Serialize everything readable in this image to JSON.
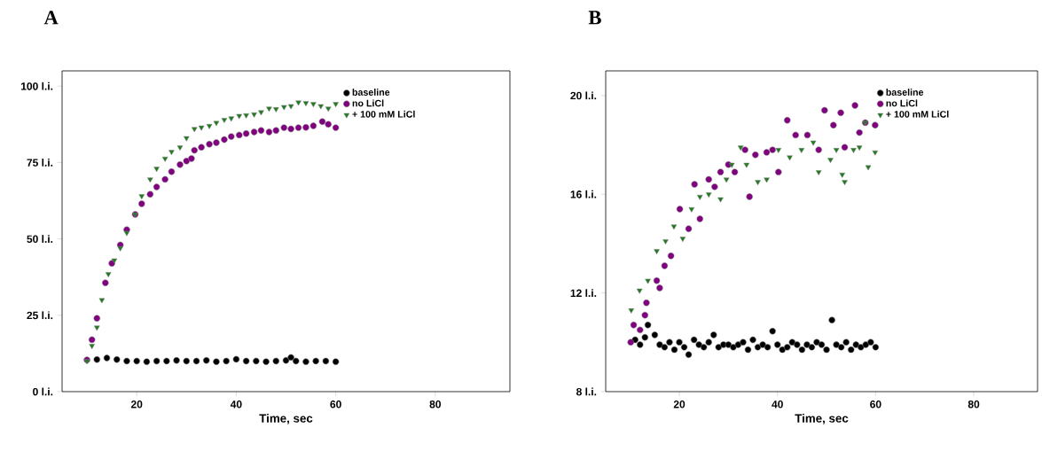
{
  "chart_data": [
    {
      "type": "scatter",
      "title": "A",
      "xlabel": "Time, sec",
      "xlim": [
        5,
        95
      ],
      "xticks": [
        20,
        40,
        60,
        80
      ],
      "ylim": [
        0,
        105
      ],
      "yticks": [
        {
          "value": 0,
          "label": "0 l.i."
        },
        {
          "value": 25,
          "label": "25 l.i."
        },
        {
          "value": 50,
          "label": "50 l.i."
        },
        {
          "value": 75,
          "label": "75 l.i."
        },
        {
          "value": 100,
          "label": "100 l.i."
        }
      ],
      "legend": "top right",
      "grid": false,
      "series": [
        {
          "name": "baseline",
          "color": "#000000",
          "marker": "circle",
          "x": [
            12,
            14,
            16,
            18,
            20,
            22,
            24,
            26,
            28,
            30,
            32,
            34,
            36,
            38,
            40,
            42,
            44,
            46,
            48,
            50,
            51,
            52,
            54,
            56,
            58,
            60
          ],
          "values": [
            10.5,
            11,
            10.5,
            10,
            10,
            9.8,
            10,
            10,
            10.2,
            10,
            10,
            10.2,
            9.8,
            10,
            10.6,
            10,
            10,
            9.8,
            10,
            10.2,
            11.2,
            10,
            9.8,
            10,
            10,
            9.8
          ]
        },
        {
          "name": "no LiCl",
          "color": "#800080",
          "marker": "circle",
          "x": [
            10,
            11,
            12,
            13.7,
            15,
            16.7,
            18,
            19.7,
            21,
            22.7,
            24,
            25.7,
            27,
            28.7,
            30,
            31,
            31.6,
            33,
            34.6,
            36,
            37.6,
            39,
            40.6,
            42,
            43.6,
            45,
            46.6,
            48,
            49.6,
            51,
            52.5,
            54,
            55.5,
            57.3,
            58.5,
            60
          ],
          "values": [
            10.4,
            17,
            24,
            35.6,
            42,
            48,
            53,
            58,
            61.5,
            64.6,
            67,
            69.5,
            72,
            74.3,
            75.5,
            76.3,
            79,
            80,
            81,
            81.5,
            82.5,
            83.5,
            84,
            84.5,
            85,
            85.5,
            85,
            85.5,
            86.4,
            86,
            86.4,
            86.5,
            87,
            88.4,
            87.5,
            86.4
          ]
        },
        {
          "name": "+ 100 mM LiCl",
          "color": "#1e7b1e",
          "marker": "triangle",
          "x": [
            10,
            11,
            12,
            13,
            14.3,
            15.5,
            16.7,
            18,
            19.7,
            21,
            22.7,
            24,
            25.7,
            27,
            28.7,
            30,
            31.6,
            33,
            34.6,
            36,
            37.6,
            39,
            40.6,
            42,
            43.6,
            45,
            46.6,
            48,
            49.6,
            51,
            52.5,
            54,
            55.5,
            57,
            58.5,
            60
          ],
          "values": [
            10,
            15,
            21,
            30,
            38.5,
            43,
            47,
            52,
            58,
            64,
            69.5,
            73,
            76.3,
            78.5,
            80,
            83,
            86,
            86.5,
            87,
            88,
            89,
            89.5,
            90.3,
            90.5,
            90.8,
            91.5,
            92.7,
            92.5,
            93.2,
            93.5,
            94.7,
            94.5,
            94.2,
            93.5,
            92.7,
            94.2
          ]
        }
      ]
    },
    {
      "type": "scatter",
      "title": "B",
      "xlabel": "Time, sec",
      "xlim": [
        5,
        93
      ],
      "xticks": [
        20,
        40,
        60,
        80
      ],
      "ylim": [
        8,
        21
      ],
      "yticks": [
        {
          "value": 8,
          "label": "8 l.i."
        },
        {
          "value": 12,
          "label": "12 l.i."
        },
        {
          "value": 16,
          "label": "16 l.i."
        },
        {
          "value": 20,
          "label": "20 l.i."
        }
      ],
      "legend": "top right",
      "grid": false,
      "series": [
        {
          "name": "baseline",
          "color": "#000000",
          "marker": "circle",
          "x": [
            11,
            12,
            13,
            13.6,
            15,
            16,
            17,
            18,
            19,
            20,
            21,
            21.9,
            23,
            24,
            25,
            26,
            27,
            28,
            29,
            30,
            31,
            32,
            33,
            34,
            35,
            36,
            37,
            38,
            39,
            40,
            41,
            42,
            43,
            44,
            45,
            46,
            47,
            48,
            49,
            50,
            51.1,
            52,
            53,
            54,
            55,
            56,
            57,
            58,
            59,
            60
          ],
          "values": [
            10.1,
            9.9,
            10.2,
            10.7,
            10.3,
            9.9,
            9.8,
            10,
            9.7,
            10,
            9.8,
            9.5,
            10.1,
            9.9,
            9.8,
            10,
            10.3,
            9.8,
            9.9,
            9.9,
            9.8,
            9.9,
            10,
            9.7,
            10.1,
            9.8,
            9.9,
            9.8,
            10.45,
            9.9,
            9.7,
            9.8,
            10,
            9.9,
            9.7,
            9.9,
            9.8,
            10,
            9.9,
            9.7,
            10.9,
            9.9,
            9.8,
            10,
            9.7,
            9.9,
            9.8,
            9.9,
            10,
            9.8
          ]
        },
        {
          "name": "no LiCl",
          "color": "#800080",
          "marker": "circle",
          "x": [
            10.1,
            10.7,
            12,
            13,
            13.3,
            15.4,
            16,
            17,
            18.3,
            20.1,
            21.9,
            23.1,
            24.2,
            26,
            27.2,
            28.4,
            30,
            31.3,
            33.4,
            34.3,
            35.5,
            37.8,
            39,
            40.2,
            42,
            43.7,
            46.1,
            48.4,
            49.6,
            51.4,
            52.9,
            53.7,
            55.8,
            56.7,
            57.9,
            59.9
          ],
          "values": [
            10,
            10.7,
            10.5,
            11.1,
            11.6,
            12.5,
            12.2,
            13.1,
            13.5,
            15.4,
            14.6,
            16.4,
            15,
            16.6,
            16.3,
            16.9,
            17.2,
            16.9,
            17.8,
            15.9,
            17.6,
            17.7,
            17.8,
            16.9,
            19,
            18.4,
            18.4,
            17.8,
            19.4,
            18.8,
            19.3,
            17.9,
            19.6,
            18.5,
            18.9,
            18.8
          ]
        },
        {
          "name": "+ 100 mM LiCl",
          "color": "#1e7b1e",
          "marker": "triangle",
          "x": [
            10.2,
            11.9,
            13.6,
            15.4,
            17.2,
            18.9,
            20.7,
            22.5,
            24.2,
            26,
            28.4,
            29.6,
            30.7,
            32.5,
            33.7,
            36,
            37.8,
            40.2,
            42.5,
            44.9,
            47.3,
            48.4,
            50.8,
            52,
            53.2,
            53.7,
            55.5,
            56.7,
            57.9,
            58.5,
            59.9
          ],
          "values": [
            11.3,
            12.1,
            12.5,
            13.7,
            14.1,
            14.7,
            14.2,
            15.4,
            15.9,
            16,
            15.8,
            16.6,
            17.2,
            17.9,
            17.2,
            16.5,
            16.6,
            17.8,
            17.5,
            17.8,
            18.1,
            16.9,
            17.4,
            17.8,
            16.8,
            16.5,
            17.8,
            17.9,
            18.9,
            17.1,
            17.7
          ]
        }
      ]
    }
  ]
}
